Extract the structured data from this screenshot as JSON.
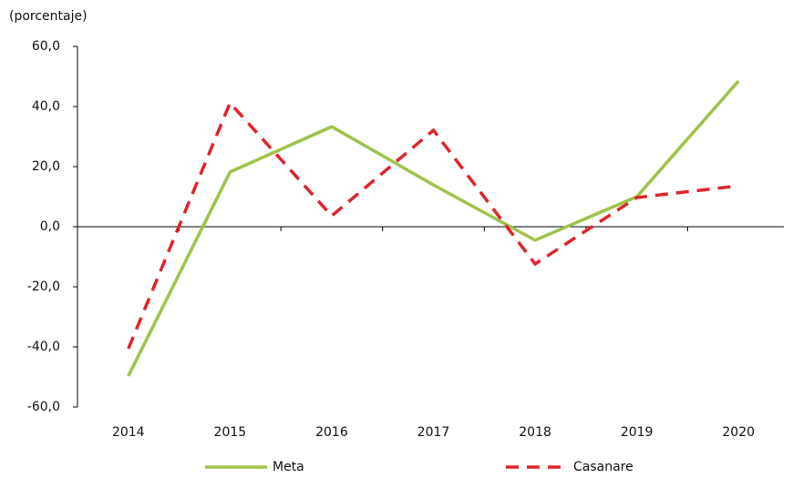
{
  "chart_data": {
    "type": "line",
    "y_label": "(porcentaje)",
    "categories": [
      "2014",
      "2015",
      "2016",
      "2017",
      "2018",
      "2019",
      "2020"
    ],
    "series": [
      {
        "name": "Meta",
        "color": "#9dc34a",
        "dash": "solid",
        "values": [
          -49.7,
          18.2,
          33.3,
          13.9,
          -4.5,
          10.0,
          48.5
        ]
      },
      {
        "name": "Casanare",
        "color": "#e0242a",
        "dash": "dashed",
        "values": [
          -40.6,
          41.2,
          3.6,
          32.1,
          -12.4,
          9.7,
          13.6
        ]
      }
    ],
    "ylim": [
      -60,
      60
    ],
    "yticks": [
      {
        "value": -60,
        "label": "-60,0"
      },
      {
        "value": -40,
        "label": "-40,0"
      },
      {
        "value": -20,
        "label": "-20,0"
      },
      {
        "value": 0,
        "label": "0,0"
      },
      {
        "value": 20,
        "label": "20,0"
      },
      {
        "value": 40,
        "label": "40,0"
      },
      {
        "value": 60,
        "label": "60,0"
      }
    ],
    "grid": false,
    "legend": "bottom"
  }
}
